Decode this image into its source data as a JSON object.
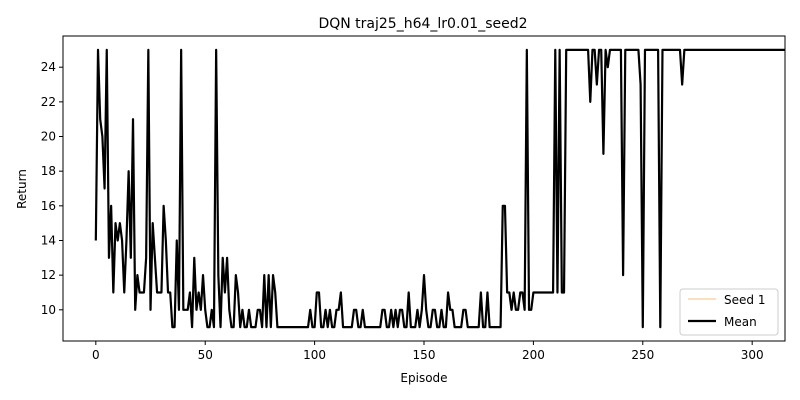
{
  "chart_data": {
    "type": "line",
    "title": "DQN traj25_h64_lr0.01_seed2",
    "xlabel": "Episode",
    "ylabel": "Return",
    "xlim": [
      -15,
      315
    ],
    "ylim": [
      8.2,
      25.8
    ],
    "xticks": [
      0,
      50,
      100,
      150,
      200,
      250,
      300
    ],
    "yticks": [
      10,
      12,
      14,
      16,
      18,
      20,
      22,
      24
    ],
    "grid": false,
    "legend_position": "lower-right",
    "series": [
      {
        "name": "Seed 1",
        "color": "#f5d9a8",
        "style": "thin",
        "x_start": 0,
        "values": [
          14,
          25,
          21,
          20,
          17,
          25,
          13,
          16,
          11,
          15,
          14,
          15,
          14,
          11,
          14,
          18,
          13,
          21,
          10,
          12,
          11,
          11,
          11,
          13,
          25,
          10,
          15,
          13,
          11,
          11,
          11,
          16,
          14,
          11,
          11,
          9,
          9,
          14,
          10,
          25,
          10,
          10,
          10,
          11,
          9,
          13,
          10,
          11,
          10,
          12,
          10,
          9,
          9,
          10,
          9,
          25,
          12,
          9,
          13,
          11,
          13,
          10,
          9,
          9,
          12,
          11,
          9,
          10,
          9,
          9,
          10,
          9,
          9,
          9,
          10,
          10,
          9,
          12,
          9,
          12,
          9,
          12,
          11,
          9,
          9,
          9,
          9,
          9,
          9,
          9,
          9,
          9,
          9,
          9,
          9,
          9,
          9,
          9,
          10,
          9,
          9,
          11,
          11,
          9,
          9,
          10,
          9,
          10,
          9,
          9,
          10,
          10,
          11,
          9,
          9,
          9,
          9,
          9,
          10,
          10,
          9,
          9,
          10,
          9,
          9,
          9,
          9,
          9,
          9,
          9,
          9,
          10,
          10,
          9,
          9,
          10,
          9,
          10,
          9,
          10,
          10,
          9,
          9,
          11,
          9,
          9,
          9,
          10,
          9,
          10,
          12,
          10,
          9,
          9,
          10,
          10,
          9,
          9,
          10,
          9,
          9,
          11,
          10,
          10,
          9,
          9,
          9,
          9,
          10,
          10,
          9,
          9,
          9,
          9,
          9,
          9,
          11,
          9,
          9,
          11,
          9,
          9,
          9,
          9,
          9,
          9,
          16,
          16,
          11,
          11,
          10,
          11,
          10,
          10,
          11,
          11,
          10,
          25,
          10,
          10,
          11,
          11,
          11,
          11,
          11,
          11,
          11,
          11,
          11,
          11,
          25,
          11,
          25,
          11,
          11,
          25,
          25,
          25,
          25,
          25,
          25,
          25,
          25,
          25,
          25,
          25,
          22,
          25,
          25,
          23,
          25,
          25,
          19,
          25,
          24,
          25,
          25,
          25,
          25,
          25,
          25,
          12,
          25,
          25,
          25,
          25,
          25,
          25,
          25,
          23,
          9,
          25,
          25,
          25,
          25,
          25,
          25,
          25,
          9,
          25,
          25,
          25,
          25,
          25,
          25,
          25,
          25,
          25,
          23,
          25,
          25,
          25,
          25,
          25,
          25,
          25,
          25,
          25,
          25,
          25,
          25,
          25,
          25,
          25,
          25,
          25,
          25,
          25,
          25,
          25,
          25,
          25,
          25,
          25,
          25,
          25,
          25,
          25,
          25,
          25,
          25,
          25,
          25,
          25,
          25,
          25,
          25,
          25,
          25,
          25,
          25,
          25,
          25,
          25,
          25,
          25
        ]
      },
      {
        "name": "Mean",
        "color": "#000000",
        "style": "thick",
        "x_start": 0,
        "values": [
          14,
          25,
          21,
          20,
          17,
          25,
          13,
          16,
          11,
          15,
          14,
          15,
          14,
          11,
          14,
          18,
          13,
          21,
          10,
          12,
          11,
          11,
          11,
          13,
          25,
          10,
          15,
          13,
          11,
          11,
          11,
          16,
          14,
          11,
          11,
          9,
          9,
          14,
          10,
          25,
          10,
          10,
          10,
          11,
          9,
          13,
          10,
          11,
          10,
          12,
          10,
          9,
          9,
          10,
          9,
          25,
          12,
          9,
          13,
          11,
          13,
          10,
          9,
          9,
          12,
          11,
          9,
          10,
          9,
          9,
          10,
          9,
          9,
          9,
          10,
          10,
          9,
          12,
          9,
          12,
          9,
          12,
          11,
          9,
          9,
          9,
          9,
          9,
          9,
          9,
          9,
          9,
          9,
          9,
          9,
          9,
          9,
          9,
          10,
          9,
          9,
          11,
          11,
          9,
          9,
          10,
          9,
          10,
          9,
          9,
          10,
          10,
          11,
          9,
          9,
          9,
          9,
          9,
          10,
          10,
          9,
          9,
          10,
          9,
          9,
          9,
          9,
          9,
          9,
          9,
          9,
          10,
          10,
          9,
          9,
          10,
          9,
          10,
          9,
          10,
          10,
          9,
          9,
          11,
          9,
          9,
          9,
          10,
          9,
          10,
          12,
          10,
          9,
          9,
          10,
          10,
          9,
          9,
          10,
          9,
          9,
          11,
          10,
          10,
          9,
          9,
          9,
          9,
          10,
          10,
          9,
          9,
          9,
          9,
          9,
          9,
          11,
          9,
          9,
          11,
          9,
          9,
          9,
          9,
          9,
          9,
          16,
          16,
          11,
          11,
          10,
          11,
          10,
          10,
          11,
          11,
          10,
          25,
          10,
          10,
          11,
          11,
          11,
          11,
          11,
          11,
          11,
          11,
          11,
          11,
          25,
          11,
          25,
          11,
          11,
          25,
          25,
          25,
          25,
          25,
          25,
          25,
          25,
          25,
          25,
          25,
          22,
          25,
          25,
          23,
          25,
          25,
          19,
          25,
          24,
          25,
          25,
          25,
          25,
          25,
          25,
          12,
          25,
          25,
          25,
          25,
          25,
          25,
          25,
          23,
          9,
          25,
          25,
          25,
          25,
          25,
          25,
          25,
          9,
          25,
          25,
          25,
          25,
          25,
          25,
          25,
          25,
          25,
          23,
          25,
          25,
          25,
          25,
          25,
          25,
          25,
          25,
          25,
          25,
          25,
          25,
          25,
          25,
          25,
          25,
          25,
          25,
          25,
          25,
          25,
          25,
          25,
          25,
          25,
          25,
          25,
          25,
          25,
          25,
          25,
          25,
          25,
          25,
          25,
          25,
          25,
          25,
          25,
          25,
          25,
          25,
          25,
          25,
          25,
          25,
          25
        ]
      }
    ]
  }
}
